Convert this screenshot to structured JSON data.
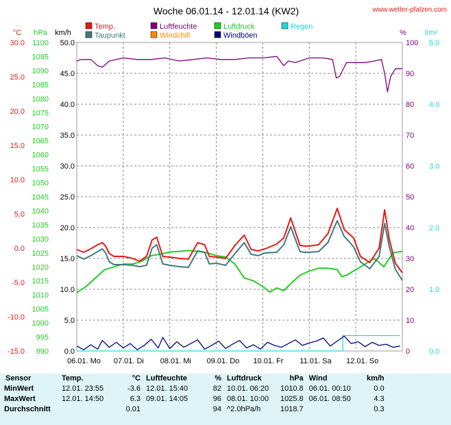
{
  "chart_data": {
    "type": "line",
    "title": "Woche 06.01.14 - 12.01.14 (KW2)",
    "site": "www.wetter-pfalzen.com",
    "x_labels": [
      "06.01. Mo",
      "07.01. Di",
      "08.01. Mi",
      "09.01. Do",
      "10.01. Fr",
      "11.01. Sa",
      "12.01. So"
    ],
    "x_range_days": [
      0,
      7
    ],
    "axes": {
      "temp": {
        "unit": "°C",
        "ticks": [
          "30.0",
          "25.0",
          "20.0",
          "15.0",
          "10.0",
          "5.0",
          "0.0",
          "-5.0",
          "-10.0",
          "-15.0"
        ],
        "range": [
          -15,
          30
        ],
        "color": "#e81818"
      },
      "hpa": {
        "unit": "hPa",
        "ticks": [
          "1100",
          "1095",
          "1090",
          "1085",
          "1080",
          "1075",
          "1070",
          "1065",
          "1060",
          "1055",
          "1050",
          "1045",
          "1040",
          "1035",
          "1030",
          "1025",
          "1020",
          "1015",
          "1010",
          "1005",
          "1000",
          "995",
          "990"
        ],
        "range": [
          990,
          1100
        ],
        "color": "#22cc22"
      },
      "kmh": {
        "unit": "km/h",
        "ticks": [
          "50.0",
          "45.0",
          "40.0",
          "35.0",
          "30.0",
          "25.0",
          "20.0",
          "15.0",
          "10.0",
          "5.0",
          "0.0"
        ],
        "range": [
          0,
          50
        ],
        "color": "#000000"
      },
      "pct": {
        "unit": "%",
        "ticks": [
          "100",
          "90",
          "80",
          "70",
          "60",
          "50",
          "40",
          "30",
          "20",
          "10",
          "0"
        ],
        "range": [
          0,
          100
        ],
        "color": "#7a007a"
      },
      "lm2": {
        "unit": "l/m²",
        "ticks": [
          "5.0",
          "4.0",
          "3.0",
          "2.0",
          "1.0",
          "0.0"
        ],
        "range": [
          0,
          5
        ],
        "color": "#22d8d8"
      }
    },
    "grid": true,
    "legend_position": "top",
    "legend": [
      {
        "name": "Temp.",
        "color": "#e81818"
      },
      {
        "name": "Taupunkt",
        "color": "#3e7a7a"
      },
      {
        "name": "Luftfeuchte",
        "color": "#7a007a"
      },
      {
        "name": "Windchill",
        "color": "#ff8800"
      },
      {
        "name": "Luftdruck",
        "color": "#22cc22"
      },
      {
        "name": "Windböen",
        "color": "#000080"
      },
      {
        "name": "Regen",
        "color": "#22d8d8"
      }
    ],
    "series": [
      {
        "name": "Temp.",
        "axis": "temp",
        "color": "#e81818",
        "x": [
          0,
          0.15,
          0.3,
          0.45,
          0.55,
          0.62,
          0.7,
          0.8,
          1.0,
          1.2,
          1.35,
          1.5,
          1.62,
          1.72,
          1.85,
          2.0,
          2.2,
          2.4,
          2.6,
          2.75,
          2.85,
          3.0,
          3.2,
          3.4,
          3.6,
          3.75,
          3.9,
          4.05,
          4.3,
          4.45,
          4.6,
          4.8,
          4.9,
          5.0,
          5.2,
          5.4,
          5.6,
          5.75,
          5.85,
          5.95,
          6.1,
          6.3,
          6.5,
          6.62,
          6.72,
          6.85,
          7.0
        ],
        "y": [
          -0.2,
          -0.6,
          -0.1,
          0.5,
          0.8,
          0.3,
          -0.8,
          -1.2,
          -1.2,
          -1.5,
          -1.9,
          -1.2,
          1.2,
          1.6,
          -1.2,
          -1.3,
          -1.5,
          -1.6,
          0.8,
          0.5,
          -1.2,
          -1.3,
          -1.5,
          0.4,
          1.9,
          -0.2,
          -0.4,
          -0.1,
          0.6,
          1.5,
          4.4,
          0.4,
          0.3,
          0.3,
          0.5,
          2.1,
          5.8,
          2.7,
          2.1,
          1.5,
          -1.2,
          -2.1,
          0.0,
          5.6,
          1.3,
          -2.2,
          -3.6
        ]
      },
      {
        "name": "Taupunkt",
        "axis": "temp",
        "color": "#3e7a7a",
        "x": [
          0,
          0.15,
          0.3,
          0.45,
          0.55,
          0.62,
          0.7,
          0.8,
          1.0,
          1.2,
          1.35,
          1.5,
          1.62,
          1.72,
          1.85,
          2.0,
          2.2,
          2.4,
          2.6,
          2.75,
          2.85,
          3.0,
          3.2,
          3.4,
          3.6,
          3.75,
          3.9,
          4.05,
          4.3,
          4.45,
          4.6,
          4.8,
          4.9,
          5.0,
          5.2,
          5.4,
          5.6,
          5.75,
          5.85,
          5.95,
          6.1,
          6.3,
          6.5,
          6.62,
          6.72,
          6.85,
          7.0
        ],
        "y": [
          -1.1,
          -1.6,
          -1.1,
          -0.5,
          -0.1,
          -0.7,
          -2.0,
          -2.4,
          -2.4,
          -2.5,
          -2.7,
          -2.5,
          0.0,
          0.5,
          -2.3,
          -2.5,
          -2.7,
          -2.8,
          -0.4,
          -0.6,
          -2.3,
          -2.2,
          -2.5,
          -0.8,
          0.8,
          -0.9,
          -1.1,
          -0.7,
          -0.6,
          0.5,
          3.1,
          -0.5,
          -0.6,
          -0.6,
          -0.5,
          0.8,
          4.0,
          1.7,
          1.0,
          0.2,
          -2.0,
          -3.0,
          -1.2,
          3.6,
          0.2,
          -3.1,
          -4.7
        ]
      },
      {
        "name": "Luftfeuchte",
        "axis": "pct",
        "color": "#7a007a",
        "x": [
          0,
          0.1,
          0.3,
          0.45,
          0.55,
          0.7,
          1.0,
          1.3,
          1.6,
          1.9,
          2.2,
          2.5,
          2.8,
          3.1,
          3.4,
          3.7,
          4.0,
          4.3,
          4.45,
          4.55,
          4.7,
          5.0,
          5.3,
          5.5,
          5.58,
          5.65,
          5.8,
          6.0,
          6.2,
          6.4,
          6.55,
          6.62,
          6.68,
          6.75,
          6.85,
          7.0
        ],
        "y": [
          94,
          94.5,
          94.5,
          92.5,
          92,
          94,
          95,
          94.5,
          94.5,
          95,
          94,
          94.5,
          95,
          94.5,
          94.5,
          95,
          95,
          95.5,
          92.5,
          94,
          93.5,
          95,
          95,
          94.5,
          88.5,
          89,
          93.5,
          93.5,
          93.5,
          94,
          94.5,
          90,
          84,
          89,
          91.5,
          91.5
        ]
      },
      {
        "name": "Luftdruck",
        "axis": "hpa",
        "color": "#22cc22",
        "x": [
          0,
          0.2,
          0.4,
          0.6,
          0.8,
          1.0,
          1.2,
          1.4,
          1.6,
          1.8,
          2.0,
          2.2,
          2.4,
          2.6,
          2.8,
          3.0,
          3.2,
          3.4,
          3.6,
          3.8,
          4.0,
          4.15,
          4.3,
          4.45,
          4.6,
          4.8,
          5.0,
          5.2,
          5.4,
          5.6,
          5.7,
          5.8,
          6.0,
          6.2,
          6.4,
          6.6,
          6.8,
          7.0
        ],
        "y": [
          1010.8,
          1013,
          1016,
          1019,
          1020,
          1021,
          1021,
          1022,
          1024,
          1024.5,
          1025.3,
          1025.5,
          1025.8,
          1025.5,
          1025,
          1024,
          1023.5,
          1021,
          1016,
          1015,
          1013,
          1011,
          1012.5,
          1011.5,
          1014,
          1017,
          1018.5,
          1019.5,
          1019.5,
          1019,
          1016.5,
          1017,
          1019,
          1021,
          1023,
          1020,
          1025,
          1025.5
        ]
      },
      {
        "name": "Windböen",
        "axis": "kmh",
        "color": "#000080",
        "x": [
          0,
          0.15,
          0.3,
          0.45,
          0.55,
          0.7,
          0.85,
          1.0,
          1.15,
          1.3,
          1.45,
          1.6,
          1.75,
          1.85,
          2.0,
          2.15,
          2.3,
          2.45,
          2.6,
          2.75,
          2.9,
          3.05,
          3.2,
          3.35,
          3.5,
          3.65,
          3.8,
          3.95,
          4.1,
          4.25,
          4.4,
          4.55,
          4.7,
          4.85,
          5.0,
          5.15,
          5.3,
          5.45,
          5.6,
          5.75,
          5.9,
          6.05,
          6.2,
          6.35,
          6.5,
          6.65,
          6.8,
          6.95
        ],
        "y": [
          0.8,
          0.2,
          1.0,
          0.3,
          1.7,
          0.6,
          1.4,
          0.5,
          1.2,
          0.2,
          0.9,
          1.9,
          0.5,
          2.2,
          0.4,
          1.5,
          0.6,
          1.2,
          1.8,
          0.3,
          0.9,
          1.6,
          0.4,
          1.1,
          1.7,
          0.5,
          1.0,
          0.3,
          1.4,
          0.9,
          0.6,
          1.2,
          1.8,
          0.9,
          1.3,
          1.6,
          2.1,
          0.8,
          1.6,
          2.4,
          1.2,
          1.5,
          0.7,
          1.4,
          0.9,
          1.1,
          0.6,
          0.8
        ]
      },
      {
        "name": "Regen",
        "axis": "lm2",
        "color": "#22d8d8",
        "x": [
          0,
          5.72,
          5.72,
          6.95
        ],
        "y": [
          0,
          0,
          0.25,
          0.25
        ]
      }
    ]
  },
  "table": {
    "headers": [
      "Sensor",
      "Temp.",
      "°C",
      "Luftfeuchte",
      "%",
      "Luftdruck",
      "hPa",
      "Wind",
      "km/h"
    ],
    "rows": [
      [
        "MinWert",
        "12.01.  23:55",
        "-3.6",
        "12.01.  15:40",
        "82",
        "10.01.  06:20",
        "1010.8",
        "06.01.  00:10",
        "0.0"
      ],
      [
        "MaxWert",
        "12.01.  14:50",
        "6.3",
        "09.01.  14:05",
        "96",
        "08.01.  10:00",
        "1025.8",
        "06.01.  08:50",
        "4.3"
      ],
      [
        "Durchschnitt",
        "",
        "0.01",
        "",
        "94",
        "^2.0hPa/h",
        "1018.7",
        "",
        "0.3"
      ]
    ]
  }
}
